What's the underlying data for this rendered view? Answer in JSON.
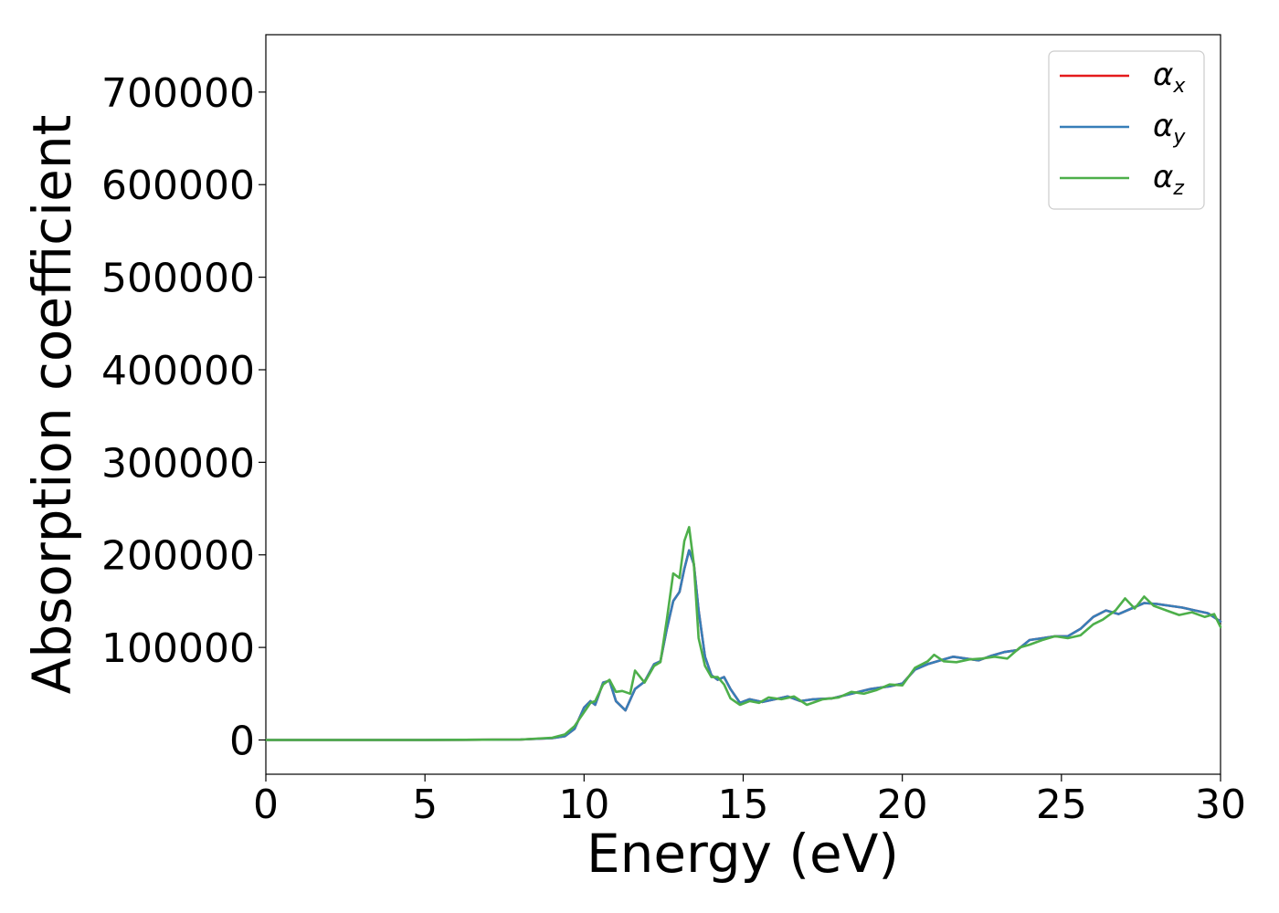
{
  "chart_data": {
    "type": "line",
    "title": "",
    "xlabel": "Energy (eV)",
    "ylabel": "Absorption coefficient",
    "xlim": [
      0,
      30
    ],
    "ylim": [
      -37000,
      762000
    ],
    "xticks": [
      0,
      5,
      10,
      15,
      20,
      25,
      30
    ],
    "yticks": [
      0,
      100000,
      200000,
      300000,
      400000,
      500000,
      600000,
      700000
    ],
    "grid": false,
    "legend": "top-right",
    "series": [
      {
        "name": "α",
        "subscript": "x",
        "color": "#e41a1c",
        "x": [
          0,
          5,
          8,
          9,
          9.4,
          9.7,
          10.0,
          10.2,
          10.35,
          10.6,
          10.8,
          11.0,
          11.3,
          11.6,
          11.9,
          12.2,
          12.4,
          12.6,
          12.8,
          13.0,
          13.15,
          13.3,
          13.45,
          13.6,
          13.8,
          14.0,
          14.2,
          14.4,
          14.6,
          14.9,
          15.2,
          15.6,
          16.0,
          16.4,
          16.8,
          17.2,
          17.8,
          18.4,
          19.0,
          19.6,
          20.0,
          20.4,
          20.8,
          21.2,
          21.6,
          22.0,
          22.4,
          22.8,
          23.2,
          23.6,
          24.0,
          24.4,
          24.8,
          25.2,
          25.6,
          26.0,
          26.4,
          26.8,
          27.2,
          27.6,
          28.0,
          28.4,
          28.8,
          29.2,
          29.6,
          30.0
        ],
        "values": [
          0,
          0,
          500,
          2000,
          4000,
          12000,
          35000,
          42000,
          38000,
          62000,
          64000,
          42000,
          32000,
          55000,
          63000,
          82000,
          85000,
          120000,
          150000,
          160000,
          185000,
          205000,
          190000,
          140000,
          90000,
          70000,
          65000,
          68000,
          55000,
          40000,
          44000,
          41000,
          44000,
          47000,
          42000,
          44000,
          45000,
          50000,
          55000,
          58000,
          61000,
          76000,
          82000,
          86000,
          90000,
          88000,
          86000,
          91000,
          95000,
          97000,
          108000,
          110000,
          112000,
          112000,
          120000,
          133000,
          140000,
          136000,
          142000,
          148000,
          147000,
          145000,
          143000,
          140000,
          137000,
          128000
        ]
      },
      {
        "name": "α",
        "subscript": "y",
        "color": "#377eb8",
        "x": [
          0,
          5,
          8,
          9,
          9.4,
          9.7,
          10.0,
          10.2,
          10.35,
          10.6,
          10.8,
          11.0,
          11.3,
          11.6,
          11.9,
          12.2,
          12.4,
          12.6,
          12.8,
          13.0,
          13.15,
          13.3,
          13.45,
          13.6,
          13.8,
          14.0,
          14.2,
          14.4,
          14.6,
          14.9,
          15.2,
          15.6,
          16.0,
          16.4,
          16.8,
          17.2,
          17.8,
          18.4,
          19.0,
          19.6,
          20.0,
          20.4,
          20.8,
          21.2,
          21.6,
          22.0,
          22.4,
          22.8,
          23.2,
          23.6,
          24.0,
          24.4,
          24.8,
          25.2,
          25.6,
          26.0,
          26.4,
          26.8,
          27.2,
          27.6,
          28.0,
          28.4,
          28.8,
          29.2,
          29.6,
          30.0
        ],
        "values": [
          0,
          0,
          500,
          2000,
          4000,
          12000,
          35000,
          42000,
          38000,
          62000,
          64000,
          42000,
          32000,
          55000,
          63000,
          82000,
          85000,
          120000,
          150000,
          160000,
          185000,
          205000,
          190000,
          140000,
          90000,
          70000,
          65000,
          68000,
          55000,
          40000,
          44000,
          41000,
          44000,
          47000,
          42000,
          44000,
          45000,
          50000,
          55000,
          58000,
          61000,
          76000,
          82000,
          86000,
          90000,
          88000,
          86000,
          91000,
          95000,
          97000,
          108000,
          110000,
          112000,
          112000,
          120000,
          133000,
          140000,
          136000,
          142000,
          148000,
          147000,
          145000,
          143000,
          140000,
          137000,
          128000
        ]
      },
      {
        "name": "α",
        "subscript": "z",
        "color": "#4daf4a",
        "x": [
          0,
          5,
          8,
          9,
          9.4,
          9.7,
          10.0,
          10.2,
          10.35,
          10.6,
          10.8,
          11.0,
          11.2,
          11.45,
          11.6,
          11.9,
          12.2,
          12.4,
          12.6,
          12.8,
          13.0,
          13.15,
          13.3,
          13.45,
          13.6,
          13.8,
          14.0,
          14.2,
          14.4,
          14.6,
          14.9,
          15.2,
          15.5,
          15.8,
          16.2,
          16.6,
          17.0,
          17.5,
          18.0,
          18.4,
          18.8,
          19.2,
          19.6,
          20.0,
          20.4,
          20.8,
          21.0,
          21.3,
          21.7,
          22.1,
          22.5,
          22.9,
          23.3,
          23.7,
          24.0,
          24.4,
          24.8,
          25.2,
          25.6,
          26.0,
          26.3,
          26.7,
          27.0,
          27.3,
          27.6,
          27.9,
          28.3,
          28.7,
          29.1,
          29.5,
          29.8,
          30.0
        ],
        "values": [
          0,
          0,
          500,
          2500,
          6000,
          15000,
          30000,
          40000,
          42000,
          60000,
          65000,
          52000,
          53000,
          50000,
          75000,
          62000,
          80000,
          84000,
          130000,
          180000,
          175000,
          215000,
          230000,
          190000,
          110000,
          80000,
          68000,
          68000,
          60000,
          45000,
          38000,
          42000,
          40000,
          46000,
          44000,
          47000,
          38000,
          44000,
          46000,
          52000,
          50000,
          54000,
          60000,
          59000,
          78000,
          85000,
          92000,
          85000,
          84000,
          87000,
          88000,
          90000,
          88000,
          100000,
          103000,
          108000,
          112000,
          110000,
          113000,
          125000,
          130000,
          140000,
          153000,
          142000,
          155000,
          145000,
          140000,
          135000,
          138000,
          133000,
          136000,
          122000
        ]
      }
    ]
  }
}
